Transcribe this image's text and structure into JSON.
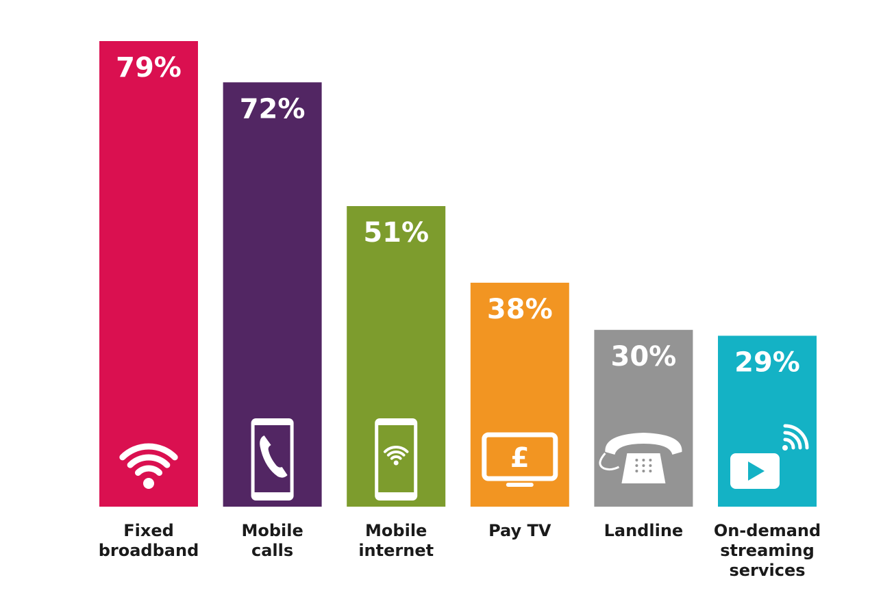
{
  "chart_data": {
    "type": "bar",
    "categories": [
      [
        "Fixed",
        "broadband"
      ],
      [
        "Mobile",
        "calls"
      ],
      [
        "Mobile",
        "internet"
      ],
      [
        "Pay TV"
      ],
      [
        "Landline"
      ],
      [
        "On-demand",
        "streaming",
        "services"
      ]
    ],
    "values": [
      79,
      72,
      51,
      38,
      30,
      29
    ],
    "value_labels": [
      "79%",
      "72%",
      "51%",
      "38%",
      "30%",
      "29%"
    ],
    "colors": [
      "#da1050",
      "#522663",
      "#7d9c2d",
      "#f29522",
      "#949494",
      "#14b2c5"
    ],
    "icons": [
      "wifi-icon",
      "mobile-phone-call-icon",
      "mobile-phone-wifi-icon",
      "tv-pound-icon",
      "landline-phone-icon",
      "streaming-video-icon"
    ],
    "ylim": [
      0,
      79
    ],
    "grid": false,
    "legend": "none"
  }
}
